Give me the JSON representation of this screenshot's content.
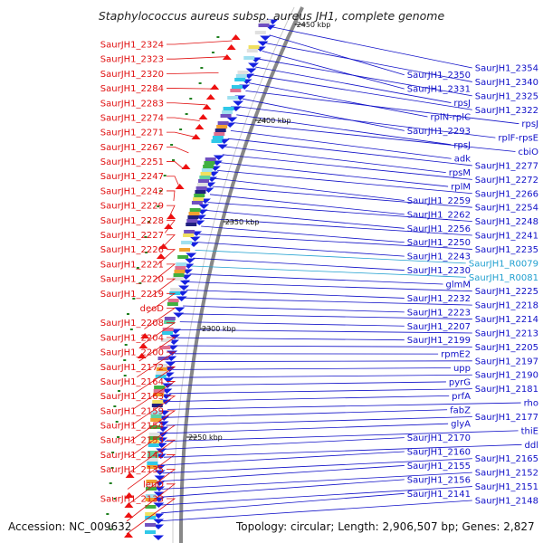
{
  "title": "Staphylococcus aureus subsp. aureus JH1, complete genome",
  "footer": {
    "accession": "Accession: NC_009632",
    "summary": "Topology: circular; Length: 2,906,507 bp; Genes: 2,827"
  },
  "colors": {
    "left_label": "#e01010",
    "right_label": "#1010c8",
    "rna_label": "#20a0d0",
    "reverse_strand": "#1520e0",
    "forward_strand": "#ee1010",
    "backbone": "#888888",
    "gc_dot": "#208020"
  },
  "scale_labels": [
    "2450 kbp",
    "2400 kbp",
    "2350 kbp",
    "2300 kbp",
    "2250 kbp"
  ],
  "left_labels": [
    "SaurJH1_2324",
    "SaurJH1_2323",
    "SaurJH1_2320",
    "SaurJH1_2284",
    "SaurJH1_2283",
    "SaurJH1_2274",
    "SaurJH1_2271",
    "SaurJH1_2267",
    "SaurJH1_2251",
    "SaurJH1_2247",
    "SaurJH1_2242",
    "SaurJH1_2229",
    "SaurJH1_2228",
    "SaurJH1_2227",
    "SaurJH1_2226",
    "SaurJH1_2221",
    "SaurJH1_2220",
    "SaurJH1_2219",
    "deoD",
    "SaurJH1_2208",
    "SaurJH1_2204",
    "SaurJH1_2200",
    "SaurJH1_2172",
    "SaurJH1_2164",
    "SaurJH1_2163",
    "SaurJH1_2159",
    "SaurJH1_2154",
    "SaurJH1_2153",
    "SaurJH1_2142",
    "SaurJH1_2135",
    "leuD",
    "SaurJH1_2133"
  ],
  "right_labels": [
    {
      "text": "SaurJH1_2354",
      "rna": false
    },
    {
      "text": "SaurJH1_2350",
      "rna": false
    },
    {
      "text": "SaurJH1_2340",
      "rna": false
    },
    {
      "text": "SaurJH1_2331",
      "rna": false
    },
    {
      "text": "SaurJH1_2325",
      "rna": false
    },
    {
      "text": "rpsJ",
      "rna": false
    },
    {
      "text": "SaurJH1_2322",
      "rna": false
    },
    {
      "text": "rplN-rplC",
      "rna": false
    },
    {
      "text": "rpsJ",
      "rna": false
    },
    {
      "text": "SaurJH1_2293",
      "rna": false
    },
    {
      "text": "rplF-rpsE",
      "rna": false
    },
    {
      "text": "rpsJ",
      "rna": false
    },
    {
      "text": "cbiO",
      "rna": false
    },
    {
      "text": "adk",
      "rna": false
    },
    {
      "text": "SaurJH1_2277",
      "rna": false
    },
    {
      "text": "rpsM",
      "rna": false
    },
    {
      "text": "SaurJH1_2272",
      "rna": false
    },
    {
      "text": "rplM",
      "rna": false
    },
    {
      "text": "SaurJH1_2266",
      "rna": false
    },
    {
      "text": "SaurJH1_2259",
      "rna": false
    },
    {
      "text": "SaurJH1_2254",
      "rna": false
    },
    {
      "text": "SaurJH1_2262",
      "rna": false
    },
    {
      "text": "SaurJH1_2248",
      "rna": false
    },
    {
      "text": "SaurJH1_2256",
      "rna": false
    },
    {
      "text": "SaurJH1_2241",
      "rna": false
    },
    {
      "text": "SaurJH1_2250",
      "rna": false
    },
    {
      "text": "SaurJH1_2235",
      "rna": false
    },
    {
      "text": "SaurJH1_2243",
      "rna": false
    },
    {
      "text": "SaurJH1_R0079",
      "rna": true
    },
    {
      "text": "SaurJH1_2230",
      "rna": false
    },
    {
      "text": "SaurJH1_R0081",
      "rna": true
    },
    {
      "text": "glmM",
      "rna": false
    },
    {
      "text": "SaurJH1_2225",
      "rna": false
    },
    {
      "text": "SaurJH1_2232",
      "rna": false
    },
    {
      "text": "SaurJH1_2218",
      "rna": false
    },
    {
      "text": "SaurJH1_2223",
      "rna": false
    },
    {
      "text": "SaurJH1_2214",
      "rna": false
    },
    {
      "text": "SaurJH1_2207",
      "rna": false
    },
    {
      "text": "SaurJH1_2213",
      "rna": false
    },
    {
      "text": "SaurJH1_2199",
      "rna": false
    },
    {
      "text": "SaurJH1_2205",
      "rna": false
    },
    {
      "text": "rpmE2",
      "rna": false
    },
    {
      "text": "SaurJH1_2197",
      "rna": false
    },
    {
      "text": "upp",
      "rna": false
    },
    {
      "text": "SaurJH1_2190",
      "rna": false
    },
    {
      "text": "pyrG",
      "rna": false
    },
    {
      "text": "SaurJH1_2181",
      "rna": false
    },
    {
      "text": "prfA",
      "rna": false
    },
    {
      "text": "rho",
      "rna": false
    },
    {
      "text": "fabZ",
      "rna": false
    },
    {
      "text": "SaurJH1_2177",
      "rna": false
    },
    {
      "text": "glyA",
      "rna": false
    },
    {
      "text": "thiE",
      "rna": false
    },
    {
      "text": "SaurJH1_2170",
      "rna": false
    },
    {
      "text": "ddl",
      "rna": false
    },
    {
      "text": "SaurJH1_2160",
      "rna": false
    },
    {
      "text": "SaurJH1_2165",
      "rna": false
    },
    {
      "text": "SaurJH1_2155",
      "rna": false
    },
    {
      "text": "SaurJH1_2152",
      "rna": false
    },
    {
      "text": "SaurJH1_2156",
      "rna": false
    },
    {
      "text": "SaurJH1_2151",
      "rna": false
    },
    {
      "text": "SaurJH1_2141",
      "rna": false
    },
    {
      "text": "SaurJH1_2148",
      "rna": false
    }
  ]
}
